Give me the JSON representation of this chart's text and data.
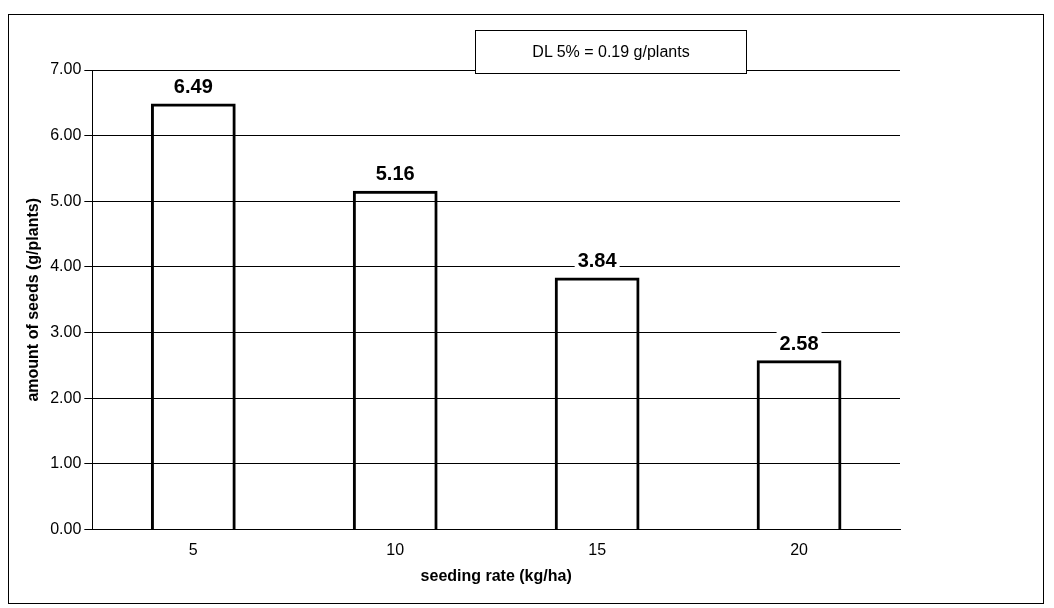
{
  "chart_data": {
    "type": "bar",
    "xlabel": "seeding rate (kg/ha)",
    "ylabel": "amount of seeds (g/plants)",
    "categories": [
      "5",
      "10",
      "15",
      "20"
    ],
    "values": [
      6.49,
      5.16,
      3.84,
      2.58
    ],
    "color": "#000000",
    "ylim": [
      0,
      7
    ],
    "yticks": [
      {
        "value": 0,
        "label": "0.00"
      },
      {
        "value": 1,
        "label": "1.00"
      },
      {
        "value": 2,
        "label": "2.00"
      },
      {
        "value": 3,
        "label": "3.00"
      },
      {
        "value": 4,
        "label": "4.00"
      },
      {
        "value": 5,
        "label": "5.00"
      },
      {
        "value": 6,
        "label": "6.00"
      },
      {
        "value": 7,
        "label": "7.00"
      }
    ],
    "grid": "y",
    "data_labels": true,
    "legend": false,
    "annotations": [
      "DL 5% = 0.19 g/plants"
    ]
  }
}
